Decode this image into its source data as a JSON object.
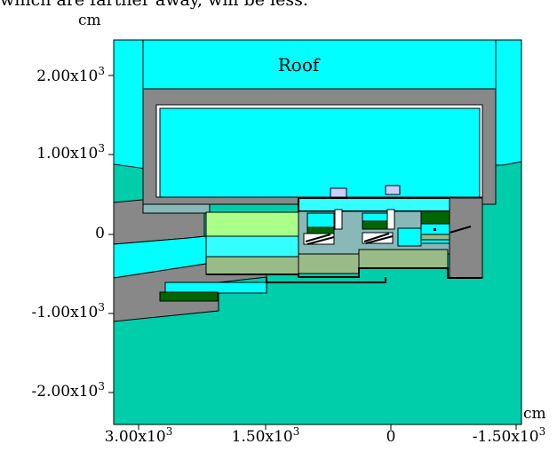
{
  "caption_fragment": "which are farther away, will be less.",
  "axes": {
    "y_unit": "cm",
    "x_unit": "cm",
    "y_ticks": [
      {
        "mant": "2.00x10",
        "exp": "3"
      },
      {
        "mant": "1.00x10",
        "exp": "3"
      },
      {
        "mant": "0",
        "exp": ""
      },
      {
        "mant": "-1.00x10",
        "exp": "3"
      },
      {
        "mant": "-2.00x10",
        "exp": "3"
      }
    ],
    "x_ticks": [
      {
        "mant": "3.00x10",
        "exp": "3"
      },
      {
        "mant": "1.50x10",
        "exp": "3"
      },
      {
        "mant": "0",
        "exp": ""
      },
      {
        "mant": "-1.50x10",
        "exp": "3"
      }
    ]
  },
  "labels": {
    "roof": "Roof"
  },
  "colors": {
    "cyan": "#00ffff",
    "rock": "#00cdaa",
    "concrete": "#888888",
    "light_cyan": "#33ffff",
    "lime": "#aaff88",
    "sage": "#99bb88",
    "dark_green": "#006600",
    "teal_gray": "#88b8b8",
    "lavender": "#ccccff"
  }
}
